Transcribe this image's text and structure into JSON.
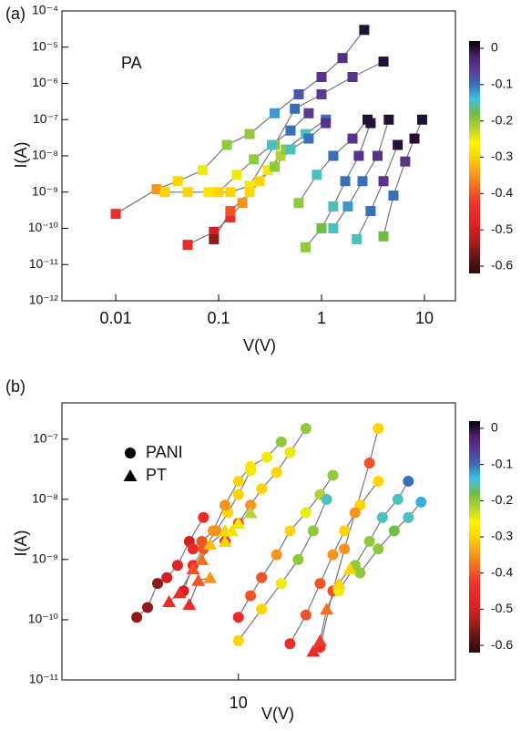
{
  "chart_data": [
    {
      "type": "scatter",
      "panel_label": "(a)",
      "annotation": "PA",
      "xlabel": "V(V)",
      "ylabel": "I(A)",
      "xscale": "log",
      "yscale": "log",
      "xlim": [
        0.003,
        20
      ],
      "ylim": [
        1e-12,
        0.0001
      ],
      "xticks": [
        0.01,
        0.1,
        1,
        10
      ],
      "yticks": [
        {
          "value": 1e-12,
          "label": "10⁻¹²"
        },
        {
          "value": 1e-11,
          "label": "10⁻¹¹"
        },
        {
          "value": 1e-10,
          "label": "10⁻¹⁰"
        },
        {
          "value": 1e-09,
          "label": "10⁻⁹"
        },
        {
          "value": 1e-08,
          "label": "10⁻⁸"
        },
        {
          "value": 1e-07,
          "label": "10⁻⁷"
        },
        {
          "value": 1e-06,
          "label": "10⁻⁶"
        },
        {
          "value": 1e-05,
          "label": "10⁻⁵"
        },
        {
          "value": 0.0001,
          "label": "10⁻⁴"
        }
      ],
      "clim": [
        -0.62,
        0.02
      ],
      "cticks": [
        0,
        -0.1,
        -0.2,
        -0.3,
        -0.4,
        -0.5,
        -0.6
      ],
      "colormap": [
        "#2b0a0a",
        "#5c1414",
        "#a01c1c",
        "#d42020",
        "#e8282a",
        "#ee3a2a",
        "#f26f22",
        "#f9a01b",
        "#ffd400",
        "#fff200",
        "#b5d334",
        "#6fbe44",
        "#3fc1e8",
        "#3a6fb7",
        "#5b3a96",
        "#4a1f6a",
        "#000000"
      ],
      "line_color": "#777777",
      "series": [
        {
          "marker": "square",
          "lines": [
            {
              "x": [
                0.01,
                0.025,
                0.04,
                0.07,
                0.12,
                0.2,
                0.35,
                0.6,
                1.0,
                1.6,
                2.6
              ],
              "values": [
                2.5e-10,
                1.2e-09,
                2e-09,
                4e-09,
                2e-08,
                4e-08,
                1.5e-07,
                5e-07,
                1.5e-06,
                5e-06,
                3e-05
              ],
              "z": [
                -0.45,
                -0.35,
                -0.3,
                -0.25,
                -0.2,
                -0.2,
                -0.12,
                -0.08,
                -0.05,
                -0.04,
                0
              ]
            },
            {
              "x": [
                0.03,
                0.05,
                0.08,
                0.13,
                0.2,
                0.35,
                0.55,
                1,
                2,
                4
              ],
              "values": [
                1e-09,
                1e-09,
                1e-09,
                1e-09,
                1.5e-09,
                2e-08,
                2e-07,
                5e-07,
                1.5e-06,
                4e-06
              ],
              "z": [
                -0.3,
                -0.3,
                -0.28,
                -0.3,
                -0.25,
                -0.2,
                -0.1,
                -0.06,
                -0.05,
                0
              ]
            },
            {
              "x": [
                0.05,
                0.09,
                0.13,
                0.17,
                0.25,
                0.4
              ],
              "values": [
                3.5e-11,
                8e-11,
                2e-10,
                5e-10,
                2e-09,
                1e-08
              ],
              "z": [
                -0.45,
                -0.5,
                -0.45,
                -0.35,
                -0.3,
                -0.22
              ]
            },
            {
              "x": [
                0.09,
                0.13,
                0.2,
                0.3,
                0.45,
                0.7,
                1.1
              ],
              "values": [
                5e-11,
                3e-10,
                1e-09,
                4e-09,
                1.5e-08,
                4e-08,
                1e-07
              ],
              "z": [
                -0.55,
                -0.4,
                -0.3,
                -0.25,
                -0.2,
                -0.15,
                -0.1
              ]
            },
            {
              "x": [
                0.1,
                0.15,
                0.22,
                0.33,
                0.5,
                0.75
              ],
              "values": [
                1e-09,
                3e-09,
                8e-09,
                2e-08,
                5e-08,
                1.5e-07
              ],
              "z": [
                -0.3,
                -0.25,
                -0.2,
                -0.15,
                -0.1,
                -0.06
              ]
            },
            {
              "x": [
                0.25,
                0.35,
                0.5,
                0.75,
                1.1
              ],
              "values": [
                2e-09,
                5e-09,
                1.5e-08,
                3e-08,
                8e-08
              ],
              "z": [
                -0.3,
                -0.2,
                -0.15,
                -0.1,
                -0.05
              ]
            },
            {
              "x": [
                0.6,
                0.9,
                1.3,
                2,
                2.8
              ],
              "values": [
                5e-10,
                3e-09,
                1e-08,
                3e-08,
                1e-07
              ],
              "z": [
                -0.2,
                -0.15,
                -0.1,
                -0.05,
                0
              ]
            },
            {
              "x": [
                0.7,
                1,
                1.3,
                1.7,
                2.3,
                3
              ],
              "values": [
                3e-11,
                1e-10,
                4e-10,
                2e-09,
                1e-08,
                8e-08
              ],
              "z": [
                -0.2,
                -0.18,
                -0.15,
                -0.1,
                -0.05,
                0
              ]
            },
            {
              "x": [
                1.3,
                1.8,
                2.5,
                3.5,
                4.5
              ],
              "values": [
                1e-10,
                4e-10,
                2e-09,
                1e-08,
                1e-07
              ],
              "z": [
                -0.15,
                -0.12,
                -0.1,
                -0.05,
                0
              ]
            },
            {
              "x": [
                2.2,
                3,
                4,
                5.5
              ],
              "values": [
                5e-11,
                3e-10,
                2e-09,
                2e-08
              ],
              "z": [
                -0.15,
                -0.1,
                -0.05,
                0
              ]
            },
            {
              "x": [
                4,
                5,
                6.5,
                8,
                9.5
              ],
              "values": [
                6e-11,
                8e-10,
                7e-09,
                3e-08,
                1e-07
              ],
              "z": [
                -0.18,
                -0.1,
                -0.05,
                0,
                0
              ]
            }
          ]
        }
      ]
    },
    {
      "type": "scatter",
      "panel_label": "(b)",
      "xlabel": "V(V)",
      "ylabel": "I(A)",
      "xscale": "log",
      "yscale": "log",
      "xlim": [
        2.5,
        55
      ],
      "ylim": [
        1e-11,
        4e-07
      ],
      "xticks": [
        10
      ],
      "yticks": [
        {
          "value": 1e-11,
          "label": "10⁻¹¹"
        },
        {
          "value": 1e-10,
          "label": "10⁻¹⁰"
        },
        {
          "value": 1e-09,
          "label": "10⁻⁹"
        },
        {
          "value": 1e-08,
          "label": "10⁻⁸"
        },
        {
          "value": 1e-07,
          "label": "10⁻⁷"
        }
      ],
      "clim": [
        -0.62,
        0.02
      ],
      "cticks": [
        0,
        -0.1,
        -0.2,
        -0.3,
        -0.4,
        -0.5,
        -0.6
      ],
      "colormap": [
        "#2b0a0a",
        "#5c1414",
        "#a01c1c",
        "#d42020",
        "#e8282a",
        "#ee3a2a",
        "#f26f22",
        "#f9a01b",
        "#ffd400",
        "#fff200",
        "#b5d334",
        "#6fbe44",
        "#3fc1e8",
        "#3a6fb7",
        "#5b3a96",
        "#4a1f6a",
        "#000000"
      ],
      "line_color": "#777777",
      "series": [
        {
          "name": "PANI",
          "marker": "circle",
          "lines": [
            {
              "x": [
                4.5,
                4.9,
                5.3,
                5.7,
                6.2,
                6.8,
                7.6
              ],
              "values": [
                1.1e-10,
                1.6e-10,
                4e-10,
                5e-10,
                8e-10,
                2e-09,
                5e-09
              ],
              "z": [
                -0.55,
                -0.55,
                -0.55,
                -0.5,
                -0.48,
                -0.5,
                -0.45
              ]
            },
            {
              "x": [
                6.5,
                7,
                7.6,
                8.4,
                9.2,
                10,
                11
              ],
              "values": [
                3e-10,
                8e-10,
                1.5e-09,
                3e-09,
                6e-09,
                1.2e-08,
                3e-08
              ],
              "z": [
                -0.5,
                -0.45,
                -0.4,
                -0.35,
                -0.3,
                -0.3,
                -0.25
              ]
            },
            {
              "x": [
                7,
                7.5,
                8.2,
                9,
                10,
                11,
                12.5,
                14
              ],
              "values": [
                1.5e-09,
                2e-09,
                3e-09,
                8e-09,
                2e-08,
                3.5e-08,
                5e-08,
                9e-08
              ],
              "z": [
                -0.45,
                -0.4,
                -0.35,
                -0.35,
                -0.3,
                -0.28,
                -0.25,
                -0.2
              ]
            },
            {
              "x": [
                9,
                10,
                11,
                12,
                13.5,
                15,
                17
              ],
              "values": [
                2e-09,
                4e-09,
                8e-09,
                1.5e-08,
                2.8e-08,
                6e-08,
                1.5e-07
              ],
              "z": [
                -0.45,
                -0.4,
                -0.35,
                -0.3,
                -0.3,
                -0.25,
                -0.2
              ]
            },
            {
              "x": [
                10,
                11,
                12,
                13.5,
                15,
                17,
                19,
                21
              ],
              "values": [
                1.1e-10,
                2.5e-10,
                5e-10,
                1.2e-09,
                3e-09,
                6e-09,
                1.2e-08,
                2.5e-08
              ],
              "z": [
                -0.45,
                -0.4,
                -0.4,
                -0.35,
                -0.3,
                -0.25,
                -0.22,
                -0.2
              ]
            },
            {
              "x": [
                10,
                12,
                14,
                16,
                18,
                20
              ],
              "values": [
                4.5e-11,
                1.5e-10,
                4e-10,
                1e-09,
                3e-09,
                1e-08
              ],
              "z": [
                -0.3,
                -0.3,
                -0.25,
                -0.2,
                -0.2,
                -0.15
              ]
            },
            {
              "x": [
                15,
                17,
                19,
                21,
                23,
                26,
                30
              ],
              "values": [
                4e-11,
                1.2e-10,
                4e-10,
                1.2e-09,
                3e-09,
                8e-09,
                2e-08
              ],
              "z": [
                -0.45,
                -0.4,
                -0.4,
                -0.35,
                -0.3,
                -0.3,
                -0.3
              ]
            },
            {
              "x": [
                19,
                21,
                23,
                25,
                28,
                30
              ],
              "values": [
                3.5e-11,
                3e-10,
                1.5e-09,
                6e-09,
                4e-08,
                1.5e-07
              ],
              "z": [
                -0.45,
                -0.4,
                -0.35,
                -0.35,
                -0.4,
                -0.3
              ]
            },
            {
              "x": [
                22,
                25,
                28,
                31,
                35,
                38
              ],
              "values": [
                3e-10,
                8e-10,
                2e-09,
                5e-09,
                1e-08,
                2e-08
              ],
              "z": [
                -0.25,
                -0.2,
                -0.2,
                -0.15,
                -0.15,
                -0.1
              ]
            },
            {
              "x": [
                26,
                30,
                34,
                38,
                42
              ],
              "values": [
                6e-10,
                1.5e-09,
                3e-09,
                5e-09,
                9e-09
              ],
              "z": [
                -0.2,
                -0.2,
                -0.18,
                -0.15,
                -0.13
              ]
            }
          ]
        },
        {
          "name": "PT",
          "marker": "triangle",
          "lines": [
            {
              "x": [
                5.8,
                6.3,
                7,
                7.5,
                8,
                9
              ],
              "values": [
                2e-10,
                2.8e-10,
                7e-10,
                1e-09,
                1.8e-09,
                3e-09
              ],
              "z": [
                -0.45,
                -0.45,
                -0.4,
                -0.38,
                -0.32,
                -0.3
              ]
            },
            {
              "x": [
                6.8,
                7.3,
                8
              ],
              "values": [
                1.8e-10,
                4.5e-10,
                5e-10
              ],
              "z": [
                -0.45,
                -0.4,
                -0.35
              ]
            },
            {
              "x": [
                9,
                9.5,
                10,
                11
              ],
              "values": [
                2e-09,
                3e-09,
                4e-09,
                6e-09
              ],
              "z": [
                -0.3,
                -0.28,
                -0.25,
                -0.22
              ]
            },
            {
              "x": [
                18,
                19,
                20,
                22,
                24
              ],
              "values": [
                3e-11,
                4.5e-11,
                1.5e-10,
                4e-10,
                7e-10
              ],
              "z": [
                -0.45,
                -0.42,
                -0.38,
                -0.3,
                -0.3
              ]
            }
          ]
        }
      ]
    }
  ]
}
